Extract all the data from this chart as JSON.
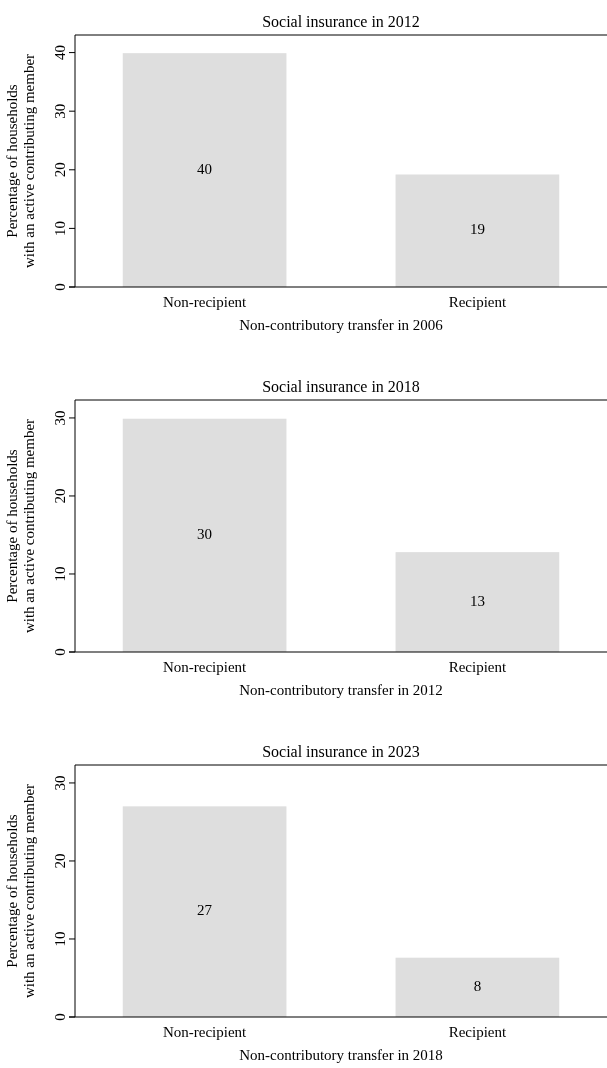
{
  "chart_data": [
    {
      "type": "bar",
      "title": "Social insurance in 2012",
      "xlabel": "Non-contributory transfer in 2006",
      "ylabel": "Percentage of households\nwith an active contributing member",
      "categories": [
        "Non-recipient",
        "Recipient"
      ],
      "values": [
        39.9,
        19.2
      ],
      "value_labels": [
        "40",
        "19"
      ],
      "color": "#dedede",
      "ylim": [
        0,
        43
      ],
      "yticks": [
        0,
        10,
        20,
        30,
        40
      ],
      "grid": false
    },
    {
      "type": "bar",
      "title": "Social insurance in 2018",
      "xlabel": "Non-contributory transfer in 2012",
      "ylabel": "Percentage of households\nwith an active contributing member",
      "categories": [
        "Non-recipient",
        "Recipient"
      ],
      "values": [
        29.9,
        12.8
      ],
      "value_labels": [
        "30",
        "13"
      ],
      "color": "#dedede",
      "ylim": [
        0,
        32.3
      ],
      "yticks": [
        0,
        10,
        20,
        30
      ],
      "grid": false
    },
    {
      "type": "bar",
      "title": "Social insurance in 2023",
      "xlabel": "Non-contributory transfer in 2018",
      "ylabel": "Percentage of households\nwith an active contributing member",
      "categories": [
        "Non-recipient",
        "Recipient"
      ],
      "values": [
        27.0,
        7.6
      ],
      "value_labels": [
        "27",
        "8"
      ],
      "color": "#dedede",
      "ylim": [
        0,
        32.3
      ],
      "yticks": [
        0,
        10,
        20,
        30
      ],
      "grid": false
    }
  ]
}
